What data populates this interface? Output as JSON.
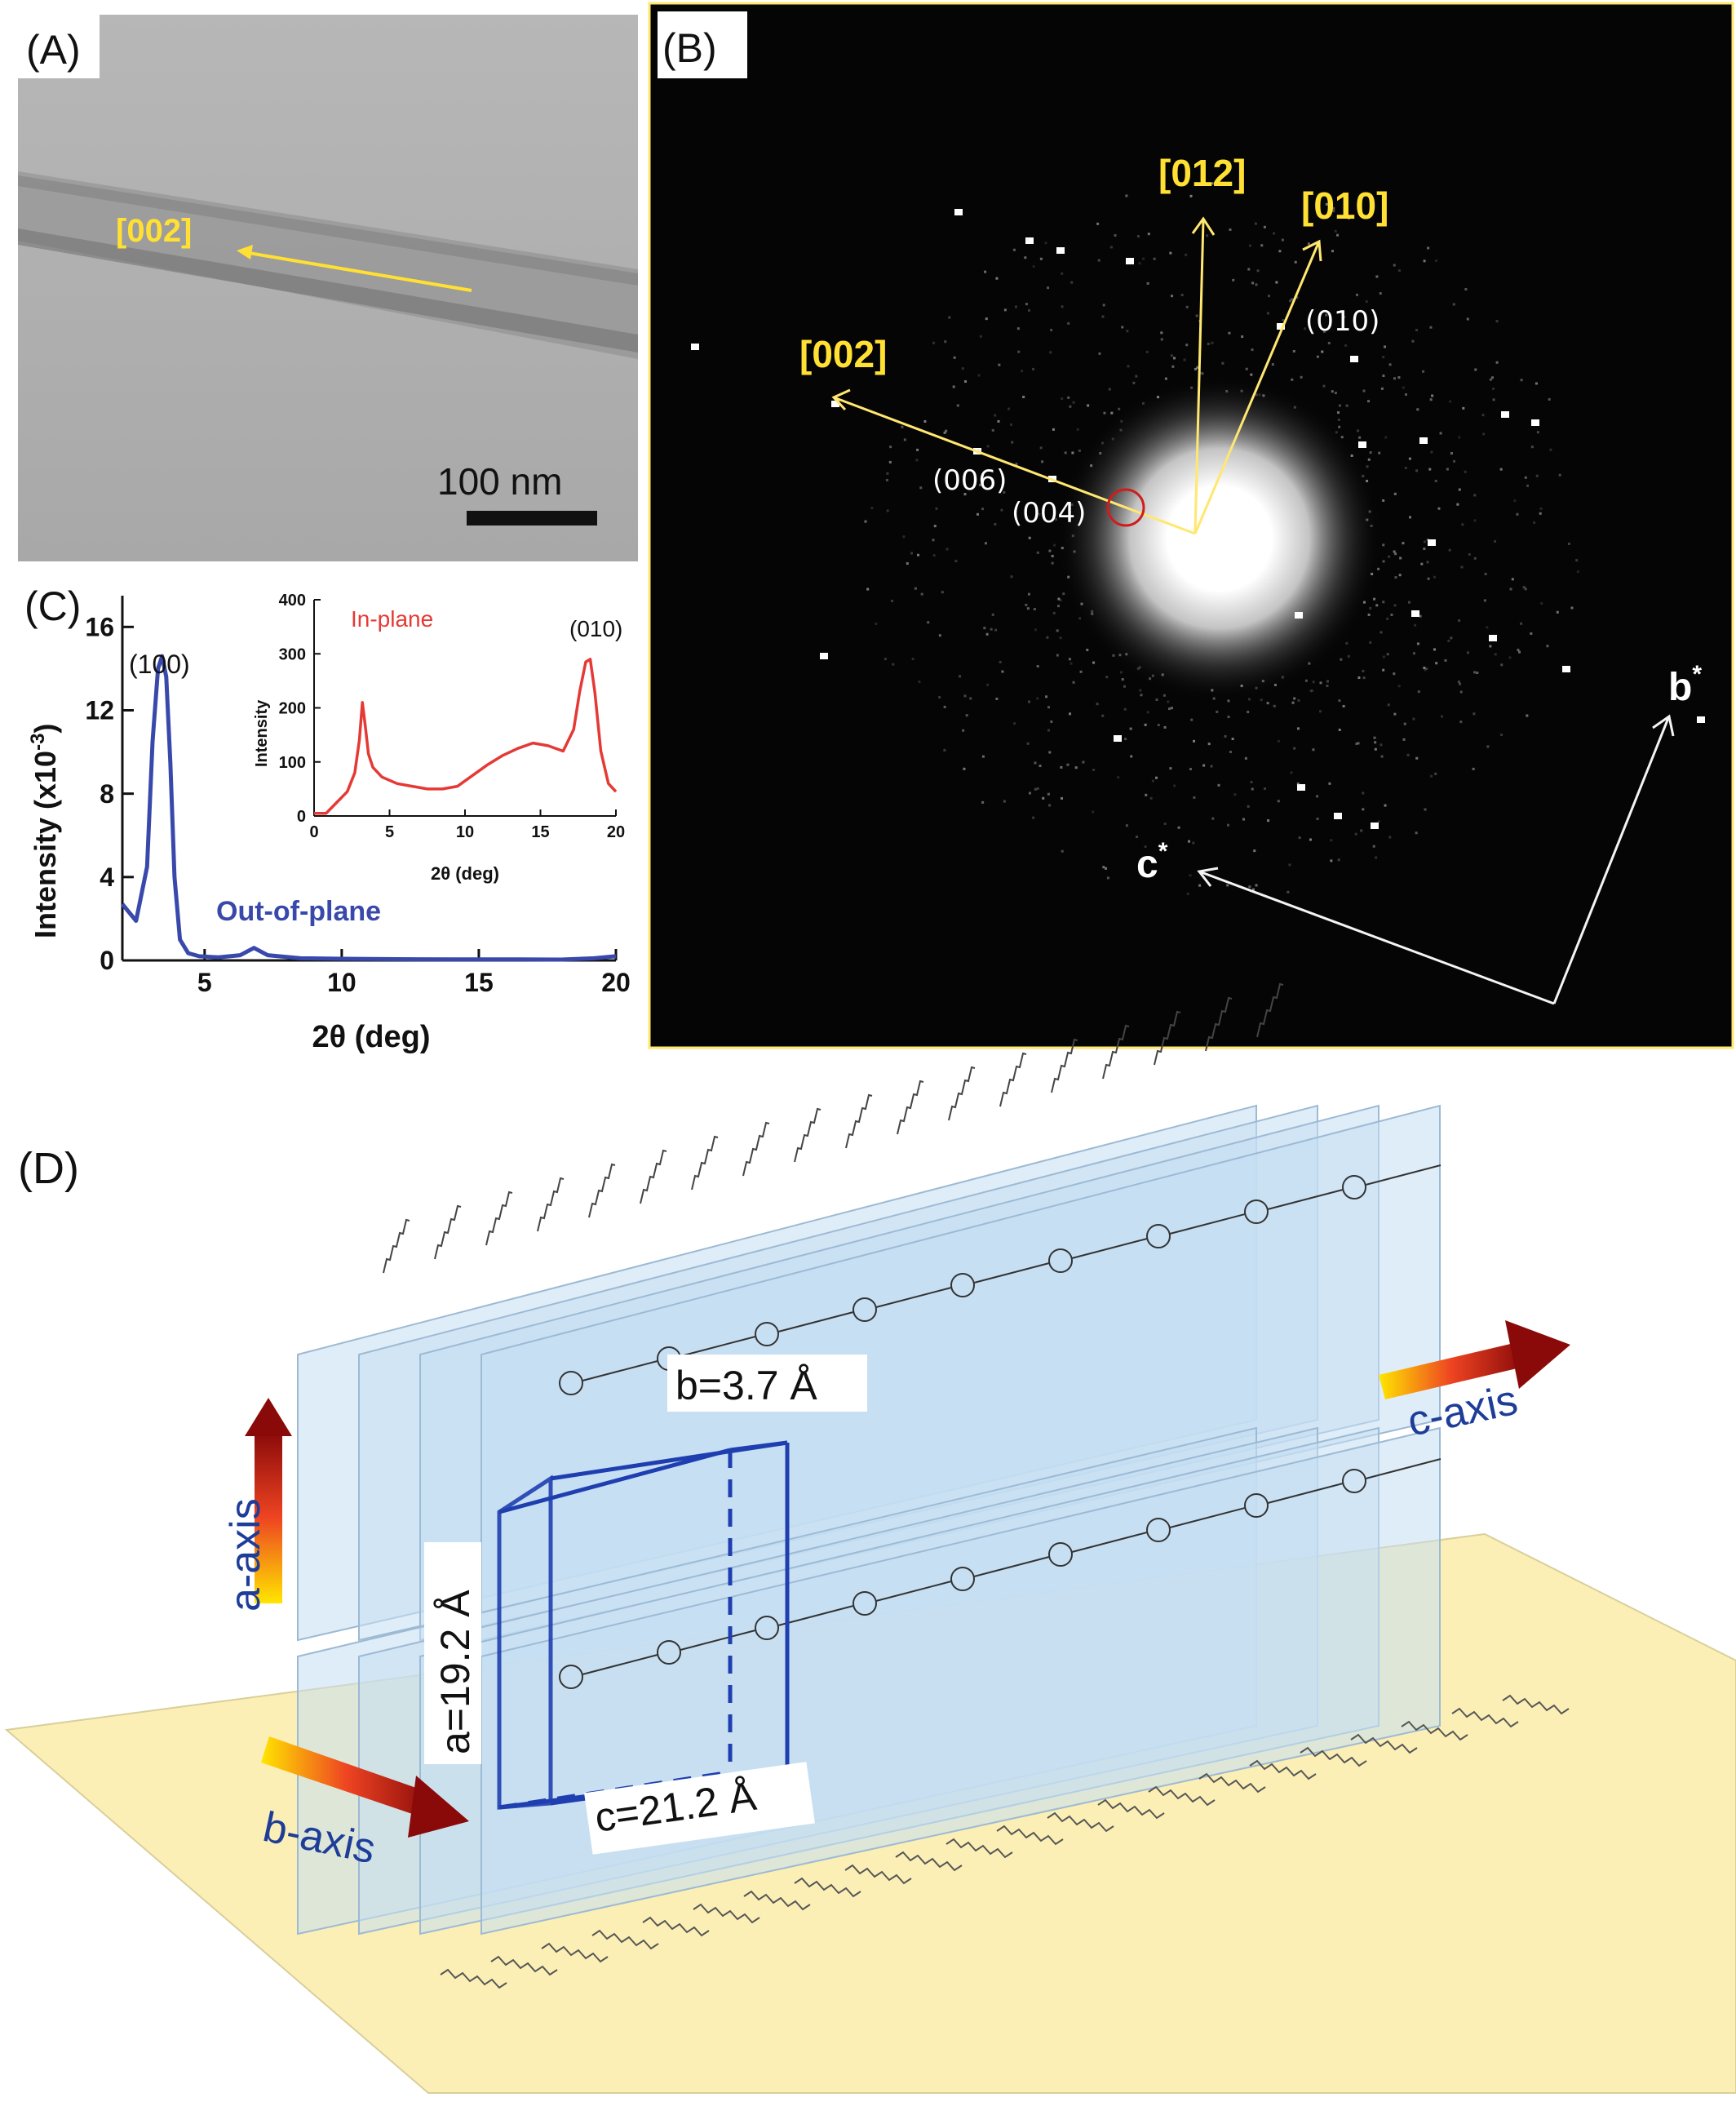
{
  "panels": {
    "a": {
      "label": "(A)",
      "direction_label": "[002]",
      "scale_bar_label": "100 nm"
    },
    "b": {
      "label": "(B)",
      "directions": [
        "[012]",
        "[010]",
        "[002]"
      ],
      "reflections": [
        "(010)",
        "(006)",
        "(004)"
      ],
      "reciprocal_axes": {
        "b": "b",
        "c": "c",
        "sup": "*"
      }
    },
    "c": {
      "label": "(C)",
      "chart_data": [
        {
          "type": "line",
          "title": "",
          "xlabel": "2θ (deg)",
          "ylabel": "Intensity (x10",
          "ylabel_exp": "-3",
          "ylabel_close": ")",
          "xlim": [
            2,
            20
          ],
          "ylim": [
            0,
            17.5
          ],
          "xticks": [
            "5",
            "10",
            "15",
            "20"
          ],
          "yticks": [
            "0",
            "4",
            "8",
            "12",
            "16"
          ],
          "annotation": "(100)",
          "series_label": "Out-of-plane",
          "color": "#3949ab",
          "x": [
            2.0,
            2.5,
            2.9,
            3.1,
            3.3,
            3.45,
            3.6,
            3.75,
            3.9,
            4.1,
            4.4,
            4.8,
            5.5,
            6.3,
            6.8,
            7.3,
            8.5,
            10,
            12,
            14,
            16,
            18,
            19.2,
            20
          ],
          "y": [
            2.7,
            1.9,
            4.5,
            10.5,
            14.0,
            14.6,
            13.6,
            9.5,
            4.0,
            1.0,
            0.35,
            0.2,
            0.15,
            0.25,
            0.6,
            0.25,
            0.1,
            0.08,
            0.06,
            0.05,
            0.05,
            0.04,
            0.1,
            0.2
          ]
        },
        {
          "type": "line",
          "title": "",
          "xlabel": "2θ (deg)",
          "ylabel": "Intensity",
          "xlim": [
            0,
            20
          ],
          "ylim": [
            0,
            400
          ],
          "xticks": [
            "0",
            "5",
            "10",
            "15",
            "20"
          ],
          "yticks": [
            "0",
            "100",
            "200",
            "300",
            "400"
          ],
          "annotation": "(010)",
          "series_label": "In-plane",
          "color": "#e53935",
          "x": [
            0,
            0.8,
            1.5,
            2.2,
            2.7,
            3.0,
            3.2,
            3.4,
            3.6,
            3.9,
            4.5,
            5.5,
            6.5,
            7.5,
            8.5,
            9.5,
            10.5,
            11.5,
            12.5,
            13.5,
            14.5,
            15.5,
            16.5,
            17.2,
            17.6,
            18.0,
            18.3,
            18.6,
            19.0,
            19.5,
            20.0
          ],
          "y": [
            5,
            5,
            25,
            45,
            80,
            140,
            210,
            165,
            115,
            90,
            72,
            60,
            55,
            50,
            50,
            55,
            75,
            95,
            112,
            125,
            135,
            130,
            120,
            160,
            230,
            285,
            290,
            230,
            120,
            60,
            45
          ]
        }
      ]
    },
    "d": {
      "label": "(D)",
      "axes": {
        "a": "a-axis",
        "b": "b-axis",
        "c": "c-axis"
      },
      "cell": {
        "a": "a=19.2 Å",
        "b": "b=3.7 Å",
        "c": "c=21.2 Å"
      }
    }
  },
  "colors": {
    "tem_bg": "#aeaeae",
    "diffraction_bg": "#050505",
    "label_yellow": "#ffe033",
    "frame_yellow": "#ffe770",
    "unit_cell_blue": "#1f3fb0",
    "axis_text_blue": "#1e3d99",
    "sheet_blue": "#c5def3",
    "substrate": "#fbefb6"
  }
}
